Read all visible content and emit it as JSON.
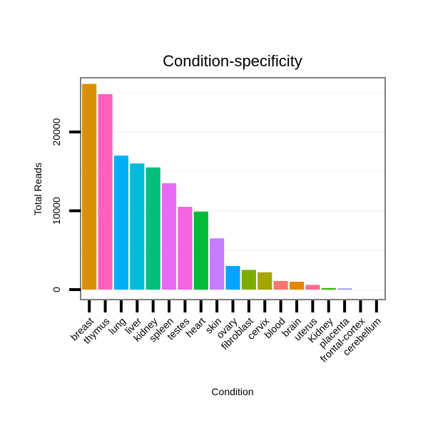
{
  "chart_data": {
    "type": "bar",
    "title": "Condition-specificity",
    "xlabel": "Condition",
    "ylabel": "Total Reads",
    "ylim": [
      -1800,
      27000
    ],
    "yticks": [
      0,
      10000,
      20000
    ],
    "grid": true,
    "categories": [
      "breast",
      "thymus",
      "lung",
      "liver",
      "kidney",
      "spleen",
      "testes",
      "heart",
      "skin",
      "ovary",
      "fibroblast",
      "cervix",
      "blood",
      "brain",
      "uterus",
      "Kidney",
      "placenta",
      "frontal-cortex",
      "cerebellum"
    ],
    "values": [
      26100,
      24800,
      17000,
      16000,
      15500,
      13500,
      10500,
      9900,
      6500,
      3000,
      2500,
      2200,
      1100,
      1000,
      600,
      200,
      150,
      0,
      0
    ],
    "colors": [
      "#D89000",
      "#FF62BC",
      "#00B0F6",
      "#00BCD8",
      "#00BF7D",
      "#E76BF3",
      "#F564E3",
      "#00BA38",
      "#C77CFF",
      "#00A5FF",
      "#7CAE00",
      "#A3A500",
      "#F8766D",
      "#E58700",
      "#FF6C91",
      "#39B600",
      "#9590FF",
      "#00C0AF",
      "#FD61D1"
    ]
  }
}
